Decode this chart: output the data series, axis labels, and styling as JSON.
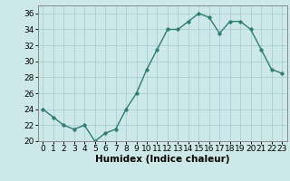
{
  "x": [
    0,
    1,
    2,
    3,
    4,
    5,
    6,
    7,
    8,
    9,
    10,
    11,
    12,
    13,
    14,
    15,
    16,
    17,
    18,
    19,
    20,
    21,
    22,
    23
  ],
  "y": [
    24,
    23,
    22,
    21.5,
    22,
    20,
    21,
    21.5,
    24,
    26,
    29,
    31.5,
    34,
    34,
    35,
    36,
    35.5,
    33.5,
    35,
    35,
    34,
    31.5,
    29,
    28.5
  ],
  "line_color": "#2e7d6e",
  "marker": "o",
  "marker_size": 2.5,
  "bg_color": "#cce8e8",
  "grid_color": "#aacece",
  "xlabel": "Humidex (Indice chaleur)",
  "xlim": [
    -0.5,
    23.5
  ],
  "ylim": [
    20,
    37
  ],
  "yticks": [
    20,
    22,
    24,
    26,
    28,
    30,
    32,
    34,
    36
  ],
  "xticks": [
    0,
    1,
    2,
    3,
    4,
    5,
    6,
    7,
    8,
    9,
    10,
    11,
    12,
    13,
    14,
    15,
    16,
    17,
    18,
    19,
    20,
    21,
    22,
    23
  ],
  "tick_fontsize": 6.5,
  "xlabel_fontsize": 7.5,
  "line_width": 1.0
}
